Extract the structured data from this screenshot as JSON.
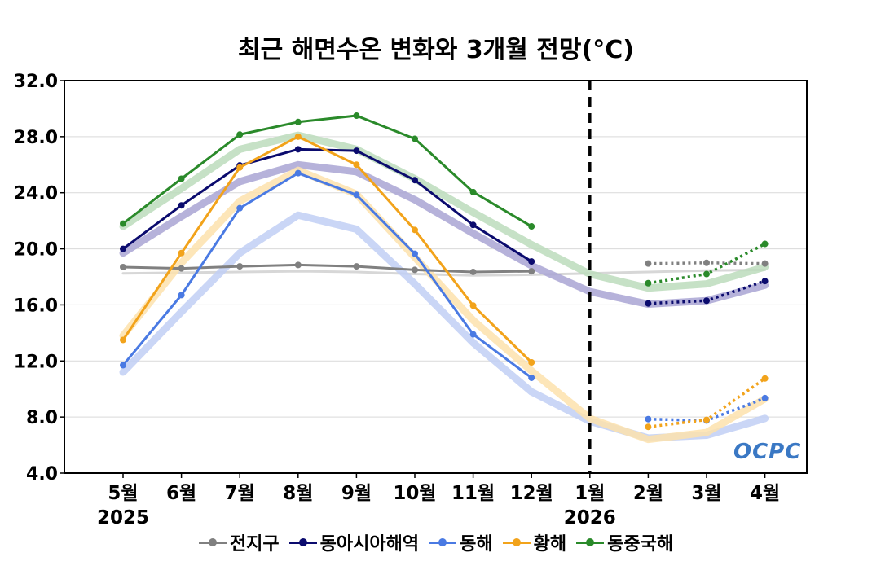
{
  "chart_data": {
    "type": "line",
    "title": "최근 해면수온 변화와 3개월 전망(°C)",
    "categories": [
      "5월",
      "6월",
      "7월",
      "8월",
      "9월",
      "10월",
      "11월",
      "12월",
      "1월",
      "2월",
      "3월",
      "4월"
    ],
    "year_labels": [
      {
        "index": 0,
        "label": "2025"
      },
      {
        "index": 8,
        "label": "2026"
      }
    ],
    "ylim": [
      4.0,
      32.0
    ],
    "yticks": [
      "4.0",
      "8.0",
      "12.0",
      "16.0",
      "20.0",
      "24.0",
      "28.0",
      "32.0"
    ],
    "yticks_values": [
      4,
      8,
      12,
      16,
      20,
      24,
      28,
      32
    ],
    "forecast_divider_index": 8,
    "grid": true,
    "legend_position": "bottom",
    "series": [
      {
        "name": "전지구",
        "color": "#808080",
        "band_color": "#d0d0d0",
        "observed": [
          18.7,
          18.6,
          18.75,
          18.85,
          18.75,
          18.5,
          18.35,
          18.4,
          null,
          null,
          null,
          null
        ],
        "forecast": [
          null,
          null,
          null,
          null,
          null,
          null,
          null,
          null,
          null,
          18.95,
          19.0,
          18.95
        ],
        "climatology": [
          18.25,
          18.3,
          18.35,
          18.4,
          18.35,
          18.2,
          18.1,
          18.15,
          18.25,
          18.35,
          18.45,
          18.5
        ]
      },
      {
        "name": "동아시아해역",
        "color": "#0b0b6e",
        "band_color": "#a9a5d3",
        "observed": [
          20.0,
          23.1,
          25.95,
          27.1,
          27.0,
          24.9,
          21.7,
          19.1,
          null,
          null,
          null,
          null
        ],
        "forecast": [
          null,
          null,
          null,
          null,
          null,
          null,
          null,
          null,
          null,
          16.1,
          16.3,
          17.7
        ],
        "climatology": [
          19.7,
          22.3,
          24.8,
          26.0,
          25.5,
          23.5,
          21.1,
          18.8,
          16.95,
          16.05,
          16.3,
          17.4
        ]
      },
      {
        "name": "동해",
        "color": "#4a7ae3",
        "band_color": "#c1cff5",
        "observed": [
          11.7,
          16.7,
          22.9,
          25.4,
          23.85,
          19.65,
          13.9,
          10.8,
          null,
          null,
          null,
          null
        ],
        "forecast": [
          null,
          null,
          null,
          null,
          null,
          null,
          null,
          null,
          null,
          7.85,
          7.75,
          9.35
        ],
        "climatology": [
          11.2,
          15.5,
          19.7,
          22.4,
          21.4,
          17.5,
          13.3,
          9.8,
          7.7,
          6.5,
          6.7,
          7.9
        ]
      },
      {
        "name": "황해",
        "color": "#f2a31b",
        "band_color": "#fde2ad",
        "observed": [
          13.5,
          19.7,
          25.8,
          28.0,
          26.0,
          21.35,
          15.95,
          11.9,
          null,
          null,
          null,
          null
        ],
        "forecast": [
          null,
          null,
          null,
          null,
          null,
          null,
          null,
          null,
          null,
          7.3,
          7.8,
          10.75
        ],
        "climatology": [
          13.8,
          19.0,
          23.4,
          25.6,
          23.9,
          19.4,
          14.9,
          11.3,
          7.9,
          6.4,
          6.9,
          9.3
        ]
      },
      {
        "name": "동중국해",
        "color": "#2a8a2a",
        "band_color": "#bcdcbc",
        "observed": [
          21.8,
          25.0,
          28.15,
          29.05,
          29.5,
          27.85,
          24.05,
          21.6,
          null,
          null,
          null,
          null
        ],
        "forecast": [
          null,
          null,
          null,
          null,
          null,
          null,
          null,
          null,
          null,
          17.55,
          18.2,
          20.35
        ],
        "climatology": [
          21.6,
          24.3,
          27.1,
          28.1,
          27.1,
          25.0,
          22.6,
          20.3,
          18.2,
          17.2,
          17.5,
          18.7
        ]
      }
    ]
  },
  "logo": {
    "text": "OCPC"
  }
}
